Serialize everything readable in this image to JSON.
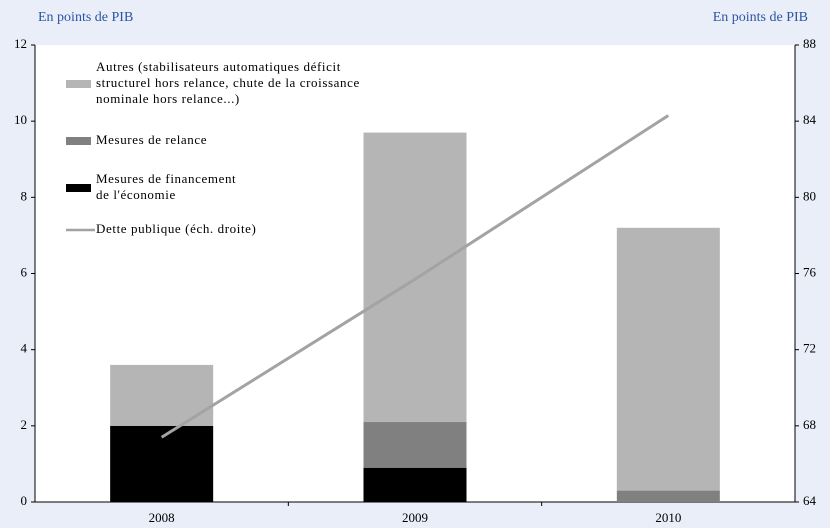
{
  "chart_data": {
    "type": "bar",
    "stacked": true,
    "left_axis_label": "En points de PIB",
    "right_axis_label": "En points de PIB",
    "categories": [
      "2008",
      "2009",
      "2010"
    ],
    "series": [
      {
        "name": "Mesures de financement de l'économie",
        "color": "#000000",
        "values": [
          2.0,
          0.9,
          0
        ]
      },
      {
        "name": "Mesures de relance",
        "color": "#808080",
        "values": [
          0,
          1.2,
          0.3
        ]
      },
      {
        "name": "Autres (stabilisateurs automatiques déficit structurel hors relance, chute de la croissance nominale hors relance...)",
        "color": "#b5b5b5",
        "values": [
          1.6,
          7.6,
          6.9
        ]
      },
      {
        "name": "Dette publique (éch. droite)",
        "color": "#a3a3a3",
        "type": "line",
        "axis": "y2",
        "values": [
          67.4,
          75.7,
          84.3
        ]
      }
    ],
    "ylim": [
      0,
      12
    ],
    "yticks": [
      0,
      2,
      4,
      6,
      8,
      10,
      12
    ],
    "y2lim": [
      64,
      88
    ],
    "y2ticks": [
      64,
      68,
      72,
      76,
      80,
      84,
      88
    ]
  }
}
